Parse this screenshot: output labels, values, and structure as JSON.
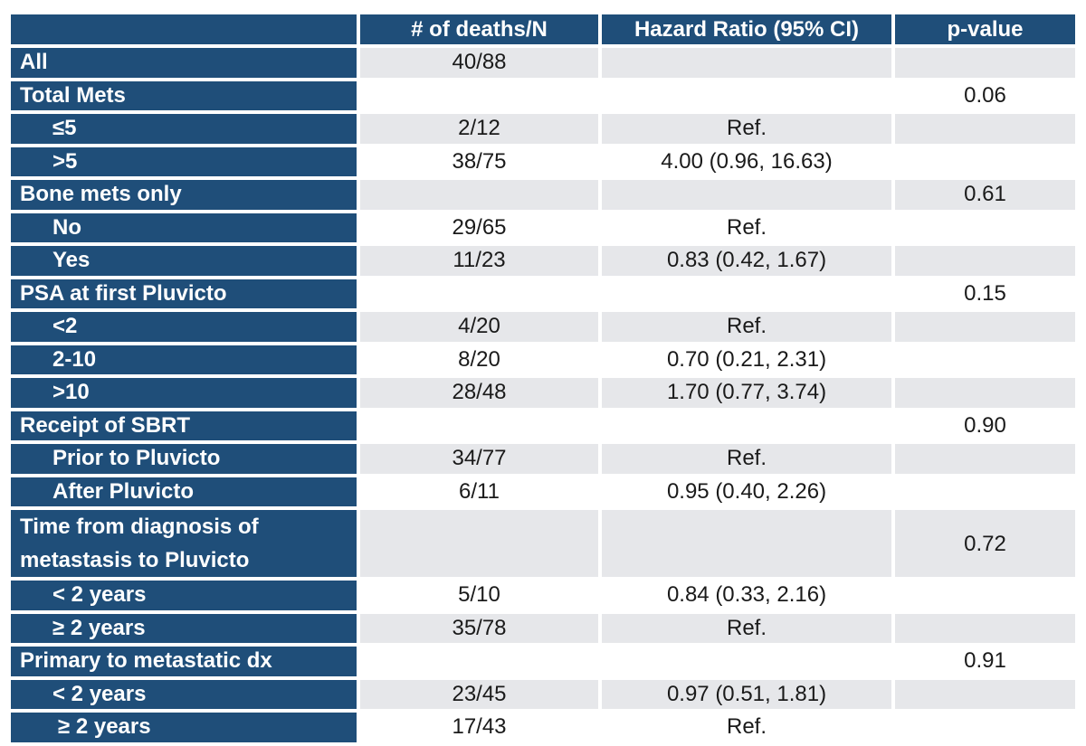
{
  "table": {
    "headers": [
      "",
      "# of deaths/N",
      "Hazard Ratio (95% CI)",
      "p-value"
    ],
    "rows": [
      {
        "label": "All",
        "deaths": "40/88",
        "hr": "",
        "p": ""
      },
      {
        "label": "Total Mets",
        "deaths": "",
        "hr": "",
        "p": "0.06"
      },
      {
        "label": "≤5",
        "deaths": "2/12",
        "hr": "Ref.",
        "p": ""
      },
      {
        "label": ">5",
        "deaths": "38/75",
        "hr": "4.00 (0.96, 16.63)",
        "p": ""
      },
      {
        "label": "Bone mets only",
        "deaths": "",
        "hr": "",
        "p": "0.61"
      },
      {
        "label": "No",
        "deaths": "29/65",
        "hr": "Ref.",
        "p": ""
      },
      {
        "label": "Yes",
        "deaths": "11/23",
        "hr": "0.83 (0.42, 1.67)",
        "p": ""
      },
      {
        "label": "PSA at first Pluvicto",
        "deaths": "",
        "hr": "",
        "p": "0.15"
      },
      {
        "label": "<2",
        "deaths": "4/20",
        "hr": "Ref.",
        "p": ""
      },
      {
        "label": "2-10",
        "deaths": "8/20",
        "hr": "0.70 (0.21, 2.31)",
        "p": ""
      },
      {
        "label": ">10",
        "deaths": "28/48",
        "hr": "1.70 (0.77, 3.74)",
        "p": ""
      },
      {
        "label": "Receipt of SBRT",
        "deaths": "",
        "hr": "",
        "p": "0.90"
      },
      {
        "label": "Prior to Pluvicto",
        "deaths": "34/77",
        "hr": "Ref.",
        "p": ""
      },
      {
        "label": "After Pluvicto",
        "deaths": "6/11",
        "hr": "0.95 (0.40, 2.26)",
        "p": ""
      },
      {
        "label": "Time from diagnosis of metastasis to Pluvicto",
        "deaths": "",
        "hr": "",
        "p": "0.72"
      },
      {
        "label": "< 2 years",
        "deaths": "5/10",
        "hr": "0.84 (0.33, 2.16)",
        "p": ""
      },
      {
        "label": "≥ 2 years",
        "deaths": "35/78",
        "hr": "Ref.",
        "p": ""
      },
      {
        "label": "Primary to metastatic dx",
        "deaths": "",
        "hr": "",
        "p": "0.91"
      },
      {
        "label": "< 2 years",
        "deaths": "23/45",
        "hr": "0.97 (0.51, 1.81)",
        "p": ""
      },
      {
        "label": "≥ 2 years",
        "deaths": "17/43",
        "hr": "Ref.",
        "p": ""
      }
    ]
  }
}
